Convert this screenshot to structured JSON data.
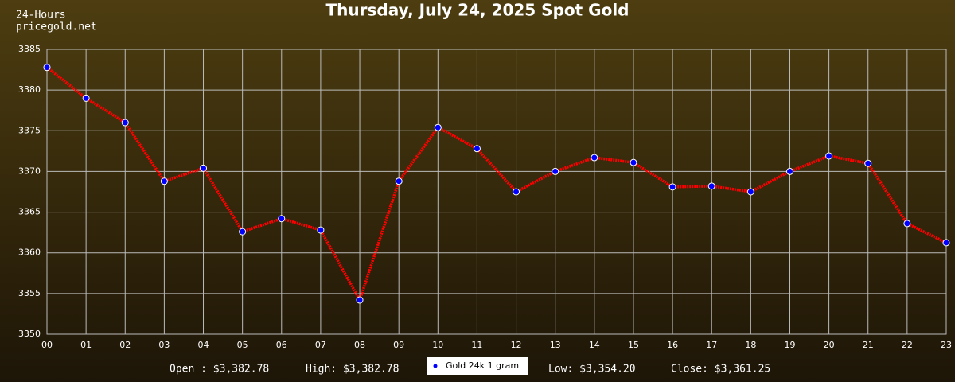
{
  "chart_data": {
    "type": "line",
    "title": "Thursday, July 24, 2025 Spot Gold",
    "header": [
      "24-Hours",
      "pricegold.net"
    ],
    "categories": [
      "00",
      "01",
      "02",
      "03",
      "04",
      "05",
      "06",
      "07",
      "08",
      "09",
      "10",
      "11",
      "12",
      "13",
      "14",
      "15",
      "16",
      "17",
      "18",
      "19",
      "20",
      "21",
      "22",
      "23"
    ],
    "series": [
      {
        "name": "Gold 24k 1 gram",
        "color": "#ff0000",
        "marker_color": "#0000ff",
        "values": [
          3382.78,
          3379.0,
          3376.0,
          3368.8,
          3370.4,
          3362.6,
          3364.2,
          3362.8,
          3354.2,
          3368.8,
          3375.4,
          3372.8,
          3367.5,
          3370.0,
          3371.7,
          3371.1,
          3368.1,
          3368.2,
          3367.5,
          3370.0,
          3371.9,
          3371.0,
          3363.6,
          3361.25
        ]
      }
    ],
    "ylim": [
      3350,
      3385
    ],
    "yticks": [
      3350,
      3355,
      3360,
      3365,
      3370,
      3375,
      3380,
      3385
    ],
    "grid": true,
    "stats_left": [
      "Open : $3,382.78",
      "High: $3,382.78"
    ],
    "stats_right": [
      "Low: $3,354.20",
      "Close: $3,361.25"
    ]
  }
}
